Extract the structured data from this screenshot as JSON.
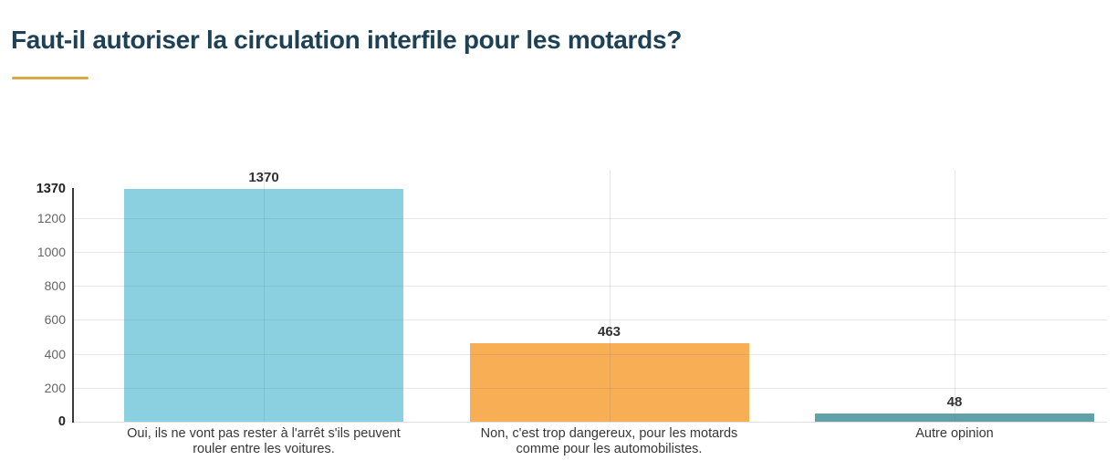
{
  "page": {
    "title": "Faut-il autoriser la circulation interfile pour les motards?"
  },
  "colors": {
    "title_text": "#1e4155",
    "title_underline": "#dca844",
    "axis_line": "#3a3a3a",
    "gridline": "#e6e6e6",
    "tick_label": "#666666",
    "tick_label_emphasized": "#222222",
    "value_label": "#333333",
    "category_label": "#373737",
    "background": "#ffffff"
  },
  "chart_data": {
    "type": "bar",
    "title": "Faut-il autoriser la circulation interfile pour les motards?",
    "xlabel": "",
    "ylabel": "",
    "grid": true,
    "legend": false,
    "ylim": [
      0,
      1483
    ],
    "yticks": [
      0,
      200,
      400,
      600,
      800,
      1000,
      1200,
      1370
    ],
    "emphasized_ticks": [
      0,
      1370
    ],
    "categories": [
      {
        "label": "Oui, ils ne vont pas rester à l'arrêt s'ils peuvent rouler entre les voitures.",
        "lines": [
          "Oui, ils ne vont pas rester à l'arrêt s'ils peuvent",
          "rouler entre les voitures."
        ]
      },
      {
        "label": "Non, c'est trop dangereux, pour les motards comme pour les automobilistes.",
        "lines": [
          "Non, c'est trop dangereux, pour les motards",
          "comme pour les automobilistes."
        ]
      },
      {
        "label": "Autre opinion",
        "lines": [
          "Autre opinion"
        ]
      }
    ],
    "values": [
      1370,
      463,
      48
    ],
    "bar_colors": [
      "#8bd0e0",
      "#f7ae55",
      "#61a1a8"
    ]
  }
}
